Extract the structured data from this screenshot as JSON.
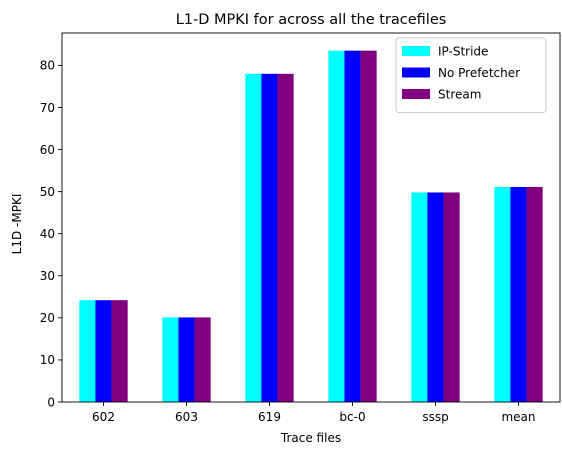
{
  "chart_data": {
    "type": "bar",
    "title": "L1-D MPKI for across all the tracefiles",
    "xlabel": "Trace files",
    "ylabel": "L1D -MPKI",
    "categories": [
      "602",
      "603",
      "619",
      "bc-0",
      "sssp",
      "mean"
    ],
    "series": [
      {
        "name": "IP-Stride",
        "color": "#00FFFF",
        "values": [
          24.2,
          20.1,
          78.0,
          83.5,
          49.8,
          51.1
        ]
      },
      {
        "name": "No Prefetcher",
        "color": "#0000FF",
        "values": [
          24.2,
          20.1,
          78.0,
          83.5,
          49.8,
          51.1
        ]
      },
      {
        "name": "Stream",
        "color": "#800080",
        "values": [
          24.2,
          20.1,
          78.0,
          83.5,
          49.8,
          51.1
        ]
      }
    ],
    "ylim": [
      0,
      87.7
    ],
    "yticks": [
      0,
      10,
      20,
      30,
      40,
      50,
      60,
      70,
      80
    ],
    "grid": false,
    "legend_position": "top-right"
  }
}
